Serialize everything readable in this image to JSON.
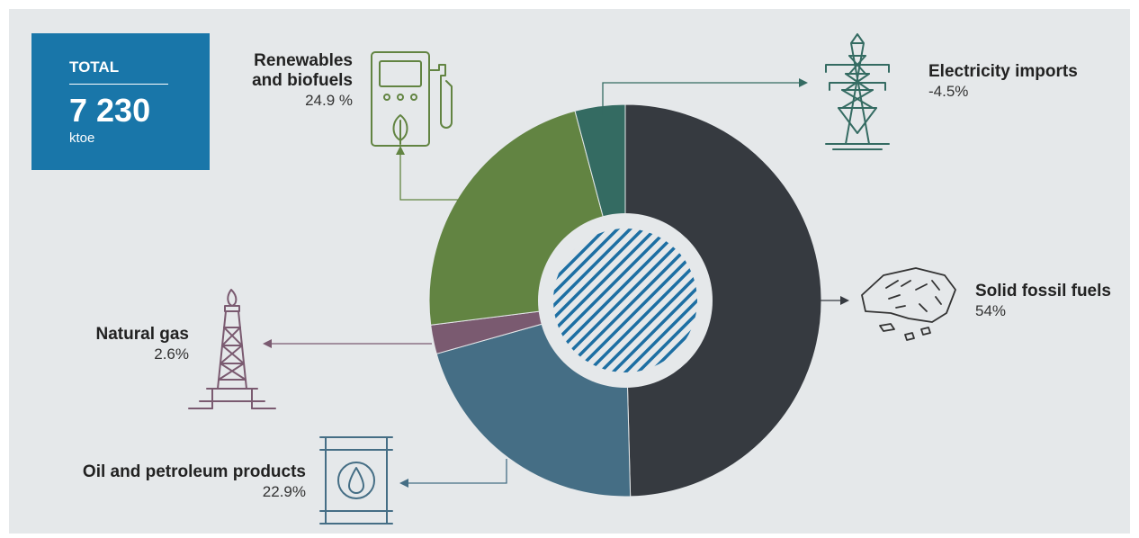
{
  "total": {
    "label": "TOTAL",
    "value": "7 230",
    "unit": "ktoe"
  },
  "colors": {
    "panel": "#e5e8ea",
    "total_box": "#1976a9",
    "solid_fossil_fuels": "#363a40",
    "oil_and_petroleum": "#456e85",
    "natural_gas": "#7a5a70",
    "renewables": "#628442",
    "electricity": "#346b62",
    "hatch": "#1d6fa3"
  },
  "labels": {
    "renewables": {
      "name_line1": "Renewables",
      "name_line2": "and biofuels",
      "pct": "24.9 %"
    },
    "electricity": {
      "name": "Electricity imports",
      "pct": "-4.5%"
    },
    "solid": {
      "name": "Solid fossil fuels",
      "pct": "54%"
    },
    "gas": {
      "name": "Natural gas",
      "pct": "2.6%"
    },
    "oil": {
      "name": "Oil and petroleum products",
      "pct": "22.9%"
    }
  },
  "icons": {
    "renewables": "ev-charger-leaf-icon",
    "electricity": "power-pylon-icon",
    "solid": "coal-icon",
    "gas": "oil-rig-flame-icon",
    "oil": "oil-barrel-drop-icon"
  },
  "chart_data": {
    "type": "pie",
    "donut": true,
    "title": "",
    "total": 7230,
    "unit": "ktoe",
    "categories": [
      "Solid fossil fuels",
      "Oil and petroleum products",
      "Natural gas",
      "Renewables and biofuels",
      "Electricity imports"
    ],
    "values": [
      54,
      22.9,
      2.6,
      24.9,
      -4.5
    ],
    "value_labels": [
      "54%",
      "22.9%",
      "2.6%",
      "24.9 %",
      "-4.5%"
    ],
    "colors": [
      "#363a40",
      "#456e85",
      "#7a5a70",
      "#628442",
      "#346b62"
    ]
  }
}
